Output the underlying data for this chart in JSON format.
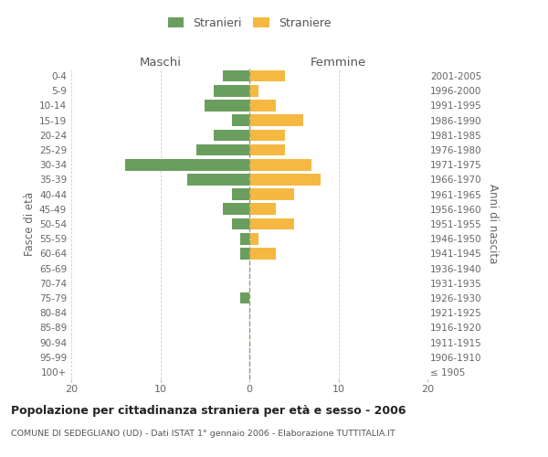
{
  "age_groups": [
    "100+",
    "95-99",
    "90-94",
    "85-89",
    "80-84",
    "75-79",
    "70-74",
    "65-69",
    "60-64",
    "55-59",
    "50-54",
    "45-49",
    "40-44",
    "35-39",
    "30-34",
    "25-29",
    "20-24",
    "15-19",
    "10-14",
    "5-9",
    "0-4"
  ],
  "birth_years": [
    "≤ 1905",
    "1906-1910",
    "1911-1915",
    "1916-1920",
    "1921-1925",
    "1926-1930",
    "1931-1935",
    "1936-1940",
    "1941-1945",
    "1946-1950",
    "1951-1955",
    "1956-1960",
    "1961-1965",
    "1966-1970",
    "1971-1975",
    "1976-1980",
    "1981-1985",
    "1986-1990",
    "1991-1995",
    "1996-2000",
    "2001-2005"
  ],
  "maschi": [
    0,
    0,
    0,
    0,
    0,
    1,
    0,
    0,
    1,
    1,
    2,
    3,
    2,
    7,
    14,
    6,
    4,
    2,
    5,
    4,
    3
  ],
  "femmine": [
    0,
    0,
    0,
    0,
    0,
    0,
    0,
    0,
    3,
    1,
    5,
    3,
    5,
    8,
    7,
    4,
    4,
    6,
    3,
    1,
    4
  ],
  "color_maschi": "#6a9e5e",
  "color_femmine": "#f5b942",
  "title": "Popolazione per cittadinanza straniera per età e sesso - 2006",
  "subtitle": "COMUNE DI SEDEGLIANO (UD) - Dati ISTAT 1° gennaio 2006 - Elaborazione TUTTITALIA.IT",
  "left_label": "Maschi",
  "right_label": "Femmine",
  "ylabel_left": "Fasce di età",
  "ylabel_right": "Anni di nascita",
  "xlim": 20,
  "legend_stranieri": "Stranieri",
  "legend_straniere": "Straniere",
  "bg_color": "#ffffff",
  "grid_color": "#d0d0d0",
  "dashed_color": "#aaaaaa"
}
